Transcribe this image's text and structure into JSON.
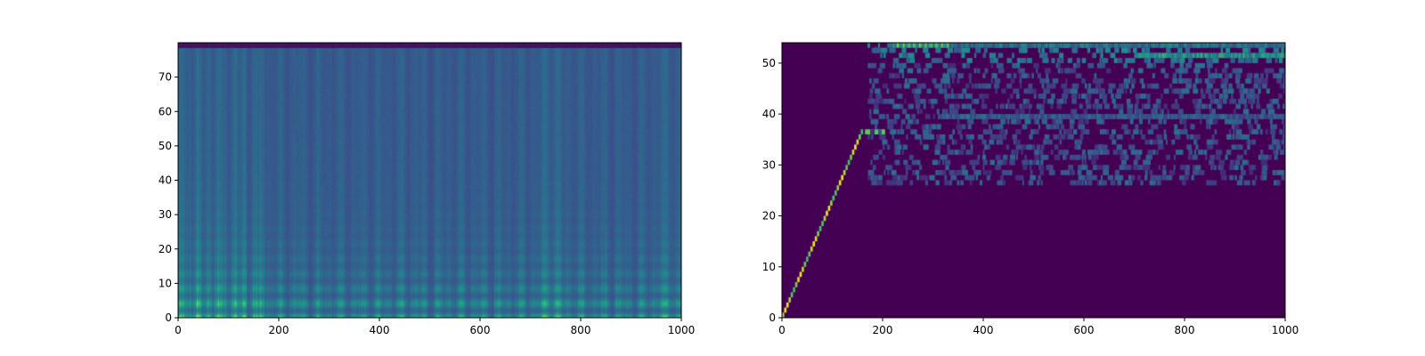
{
  "chart_data": [
    {
      "type": "heatmap",
      "title": "",
      "xlabel": "",
      "ylabel": "",
      "xlim": [
        0,
        1000
      ],
      "ylim": [
        0,
        80
      ],
      "xticks": [
        0,
        200,
        400,
        600,
        800,
        1000
      ],
      "yticks": [
        0,
        10,
        20,
        30,
        40,
        50,
        60,
        70
      ],
      "xtick_labels": [
        "0",
        "200",
        "400",
        "600",
        "800",
        "1000"
      ],
      "ytick_labels": [
        "0",
        "10",
        "20",
        "30",
        "40",
        "50",
        "60",
        "70"
      ],
      "colormap": "viridis",
      "grid": false,
      "legend": "none"
    },
    {
      "type": "heatmap",
      "title": "",
      "xlabel": "",
      "ylabel": "",
      "xlim": [
        0,
        1000
      ],
      "ylim": [
        0,
        54
      ],
      "xticks": [
        0,
        200,
        400,
        600,
        800,
        1000
      ],
      "yticks": [
        0,
        10,
        20,
        30,
        40,
        50
      ],
      "xtick_labels": [
        "0",
        "200",
        "400",
        "600",
        "800",
        "1000"
      ],
      "ytick_labels": [
        "0",
        "10",
        "20",
        "30",
        "40",
        "50"
      ],
      "colormap": "viridis",
      "grid": false,
      "legend": "none"
    }
  ]
}
